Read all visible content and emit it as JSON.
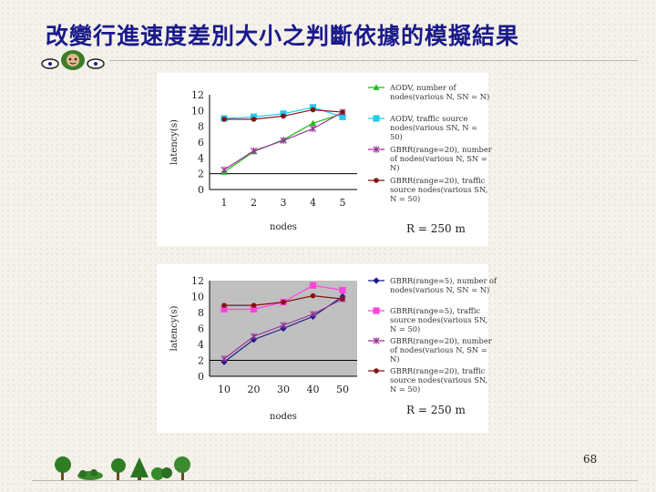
{
  "slide": {
    "title": "改變行進速度差別大小之判斷依據的模擬結果",
    "page_number": "68"
  },
  "chart_data": [
    {
      "type": "line",
      "ylabel": "latency(s)",
      "xlabel": "nodes",
      "caption": "R = 250 m",
      "categories": [
        "1",
        "2",
        "3",
        "4",
        "5"
      ],
      "y_ticks": [
        "12",
        "10",
        "8",
        "6",
        "4",
        "2",
        "0"
      ],
      "ylim": [
        0,
        12
      ],
      "plot_background": "#ffffff",
      "reference_line": 2,
      "legend_position": "right",
      "series": [
        {
          "name": "AODV, number of nodes(various N, SN = N)",
          "color": "#22bb22",
          "marker": "triangle",
          "values": [
            2.2,
            4.8,
            6.3,
            8.4,
            9.6
          ]
        },
        {
          "name": "AODV, traffic source nodes(various SN, N = 50)",
          "color": "#22ccee",
          "marker": "square",
          "values": [
            9.0,
            9.2,
            9.6,
            10.4,
            9.2
          ]
        },
        {
          "name": "GBRR(range=20), number of nodes(various N, SN = N)",
          "color": "#993399",
          "marker": "star",
          "values": [
            2.5,
            4.9,
            6.2,
            7.7,
            9.8
          ]
        },
        {
          "name": "GBRR(range=20), traffic source nodes(various SN, N = 50)",
          "color": "#881111",
          "marker": "circle",
          "values": [
            8.9,
            8.9,
            9.3,
            10.1,
            9.8
          ]
        }
      ]
    },
    {
      "type": "line",
      "ylabel": "latency(s)",
      "xlabel": "nodes",
      "caption": "R = 250 m",
      "categories": [
        "10",
        "20",
        "30",
        "40",
        "50"
      ],
      "y_ticks": [
        "12",
        "10",
        "8",
        "6",
        "4",
        "2",
        "0"
      ],
      "ylim": [
        0,
        12
      ],
      "plot_background": "#c0c0c0",
      "reference_line": 2,
      "legend_position": "right",
      "series": [
        {
          "name": "GBRR(range=5), number of nodes(various N, SN = N)",
          "color": "#1a1a8c",
          "marker": "diamond",
          "values": [
            1.8,
            4.6,
            6.0,
            7.5,
            10.0
          ]
        },
        {
          "name": "GBRR(range=5), traffic source nodes(various SN, N = 50)",
          "color": "#ff44dd",
          "marker": "square",
          "values": [
            8.4,
            8.4,
            9.3,
            11.4,
            10.8
          ]
        },
        {
          "name": "GBRR(range=20), number of nodes(various N, SN = N)",
          "color": "#993399",
          "marker": "star",
          "values": [
            2.2,
            5.0,
            6.4,
            7.8,
            9.7
          ]
        },
        {
          "name": "GBRR(range=20), traffic source nodes(various SN, N = 50)",
          "color": "#881111",
          "marker": "circle",
          "values": [
            8.9,
            8.9,
            9.3,
            10.1,
            9.7
          ]
        }
      ]
    }
  ]
}
